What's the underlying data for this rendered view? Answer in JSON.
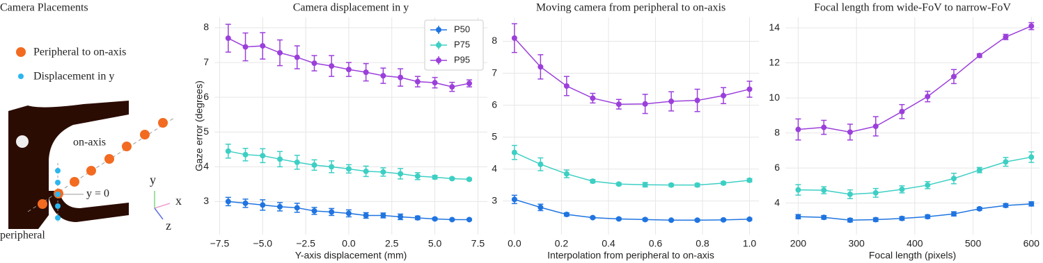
{
  "diagram": {
    "title": "Camera Placements",
    "legend": [
      "Peripheral to on-axis",
      "Displacement in y"
    ],
    "labels": {
      "on_axis": "on-axis",
      "y0": "y = 0",
      "peripheral": "peripheral"
    },
    "axes": {
      "y": "y",
      "x": "x",
      "z": "z"
    }
  },
  "chart_data": [
    {
      "type": "line",
      "title": "Camera displacement in y",
      "xlabel": "Y-axis displacement (mm)",
      "ylabel": "Gaze error (degrees)",
      "grid": true,
      "legend": "upper right",
      "x": [
        -7,
        -6,
        -5,
        -4,
        -3,
        -2,
        -1,
        0,
        1,
        2,
        3,
        4,
        5,
        6,
        7
      ],
      "xlim": [
        -7.8,
        8.05
      ],
      "xticks": [
        {
          "value": -7.5,
          "label": "−7.5"
        },
        {
          "value": -5,
          "label": "−5.0"
        },
        {
          "value": -2.5,
          "label": "−2.5"
        },
        {
          "value": 0,
          "label": "0.0"
        },
        2.5,
        {
          "value": 5,
          "label": "5.0"
        },
        7.5
      ],
      "ylim": [
        2.05,
        8.3
      ],
      "yticks": [
        3,
        4,
        5,
        6,
        7,
        8
      ],
      "series": [
        {
          "name": "P50",
          "color": "#1f74e0",
          "values": [
            3.0,
            2.95,
            2.9,
            2.85,
            2.82,
            2.73,
            2.7,
            2.66,
            2.6,
            2.6,
            2.56,
            2.53,
            2.5,
            2.48,
            2.48
          ],
          "errors": [
            0.12,
            0.12,
            0.15,
            0.12,
            0.13,
            0.1,
            0.1,
            0.1,
            0.08,
            0.07,
            0.08,
            0.05,
            0.03,
            0.02,
            0.02
          ]
        },
        {
          "name": "P75",
          "color": "#3dcfc4",
          "values": [
            4.45,
            4.35,
            4.32,
            4.22,
            4.13,
            4.05,
            4.0,
            3.94,
            3.87,
            3.85,
            3.8,
            3.73,
            3.7,
            3.66,
            3.64
          ],
          "errors": [
            0.2,
            0.18,
            0.2,
            0.22,
            0.2,
            0.15,
            0.17,
            0.12,
            0.15,
            0.12,
            0.15,
            0.1,
            0.05,
            0.03,
            0.03
          ]
        },
        {
          "name": "P95",
          "color": "#9b3fdb",
          "values": [
            7.7,
            7.45,
            7.48,
            7.28,
            7.15,
            6.98,
            6.9,
            6.8,
            6.72,
            6.62,
            6.57,
            6.45,
            6.42,
            6.3,
            6.4
          ],
          "errors": [
            0.4,
            0.4,
            0.38,
            0.37,
            0.33,
            0.22,
            0.3,
            0.2,
            0.25,
            0.22,
            0.25,
            0.15,
            0.15,
            0.13,
            0.1
          ]
        }
      ]
    },
    {
      "type": "line",
      "title": "Moving camera from peripheral to on-axis",
      "xlabel": "Interpolation from peripheral to on-axis",
      "grid": true,
      "x": [
        0,
        0.111,
        0.222,
        0.333,
        0.444,
        0.556,
        0.667,
        0.778,
        0.889,
        1
      ],
      "xlim": [
        -0.05,
        1.04
      ],
      "xticks": [
        {
          "value": 0,
          "label": "0.0"
        },
        0.2,
        0.4,
        0.6,
        0.8,
        {
          "value": 1,
          "label": "1.0"
        }
      ],
      "ylim": [
        1.95,
        8.75
      ],
      "yticks": [
        3,
        4,
        5,
        6,
        7,
        8
      ],
      "series": [
        {
          "name": "P50",
          "color": "#1f74e0",
          "values": [
            3.05,
            2.8,
            2.58,
            2.48,
            2.44,
            2.42,
            2.4,
            2.4,
            2.41,
            2.43
          ],
          "errors": [
            0.13,
            0.1,
            0.05,
            0.03,
            0.03,
            0.04,
            0.02,
            0.03,
            0.03,
            0.03
          ]
        },
        {
          "name": "P75",
          "color": "#3dcfc4",
          "values": [
            4.52,
            4.15,
            3.85,
            3.62,
            3.53,
            3.51,
            3.5,
            3.5,
            3.56,
            3.65
          ],
          "errors": [
            0.22,
            0.2,
            0.12,
            0.05,
            0.04,
            0.07,
            0.04,
            0.05,
            0.04,
            0.05
          ]
        },
        {
          "name": "P95",
          "color": "#9b3fdb",
          "values": [
            8.1,
            7.2,
            6.6,
            6.22,
            6.03,
            6.04,
            6.12,
            6.15,
            6.3,
            6.5
          ],
          "errors": [
            0.45,
            0.38,
            0.3,
            0.15,
            0.15,
            0.3,
            0.3,
            0.35,
            0.25,
            0.25
          ]
        }
      ]
    },
    {
      "type": "line",
      "title": "Focal length from wide-FoV to narrow-FoV",
      "xlabel": "Focal length (pixels)",
      "grid": true,
      "x": [
        200,
        244,
        289,
        333,
        378,
        422,
        467,
        511,
        556,
        600
      ],
      "xlim": [
        178,
        614
      ],
      "xticks": [
        200,
        300,
        400,
        500,
        600
      ],
      "ylim": [
        2.2,
        14.6
      ],
      "yticks": [
        4,
        6,
        8,
        10,
        12,
        14
      ],
      "series": [
        {
          "name": "P50",
          "color": "#1f74e0",
          "values": [
            3.22,
            3.18,
            3.02,
            3.05,
            3.12,
            3.22,
            3.38,
            3.67,
            3.86,
            3.95
          ],
          "errors": [
            0.12,
            0.1,
            0.1,
            0.1,
            0.1,
            0.1,
            0.12,
            0.08,
            0.1,
            0.12
          ]
        },
        {
          "name": "P75",
          "color": "#3dcfc4",
          "values": [
            4.75,
            4.73,
            4.5,
            4.58,
            4.78,
            5.02,
            5.4,
            5.88,
            6.35,
            6.62
          ],
          "errors": [
            0.3,
            0.2,
            0.25,
            0.25,
            0.2,
            0.2,
            0.3,
            0.15,
            0.25,
            0.3
          ]
        },
        {
          "name": "P95",
          "color": "#9b3fdb",
          "values": [
            8.2,
            8.32,
            8.05,
            8.38,
            9.22,
            10.08,
            11.22,
            12.42,
            13.48,
            14.1
          ],
          "errors": [
            0.6,
            0.4,
            0.45,
            0.55,
            0.4,
            0.3,
            0.4,
            0.1,
            0.15,
            0.2
          ]
        }
      ]
    }
  ]
}
